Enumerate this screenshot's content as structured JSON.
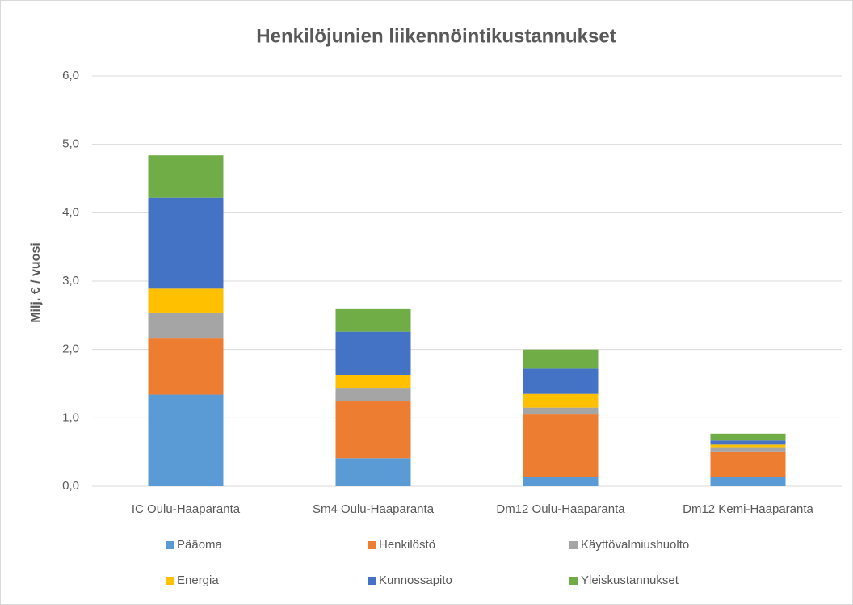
{
  "chart_data": {
    "type": "stacked_bar",
    "title": "Henkilöjunien liikennöintikustannukset",
    "ylabel": "Milj. € / vuosi",
    "categories": [
      "IC Oulu-Haaparanta",
      "Sm4 Oulu-Haaparanta",
      "Dm12 Oulu-Haaparanta",
      "Dm12 Kemi-Haaparanta"
    ],
    "series": [
      {
        "name": "Pääoma",
        "color": "#5b9bd5",
        "values": [
          1.34,
          0.41,
          0.13,
          0.13
        ]
      },
      {
        "name": "Henkilöstö",
        "color": "#ed7d31",
        "values": [
          0.82,
          0.83,
          0.92,
          0.38
        ]
      },
      {
        "name": "Käyttövalmiushuolto",
        "color": "#a5a5a5",
        "values": [
          0.38,
          0.2,
          0.1,
          0.05
        ]
      },
      {
        "name": "Energia",
        "color": "#ffc000",
        "values": [
          0.35,
          0.19,
          0.2,
          0.05
        ]
      },
      {
        "name": "Kunnossapito",
        "color": "#4472c4",
        "values": [
          1.33,
          0.63,
          0.37,
          0.06
        ]
      },
      {
        "name": "Yleiskustannukset",
        "color": "#70ad47",
        "values": [
          0.62,
          0.34,
          0.28,
          0.1
        ]
      }
    ],
    "ylim": [
      0,
      6
    ],
    "yticks": [
      {
        "value": 0,
        "label": "0,0"
      },
      {
        "value": 1,
        "label": "1,0"
      },
      {
        "value": 2,
        "label": "2,0"
      },
      {
        "value": 3,
        "label": "3,0"
      },
      {
        "value": 4,
        "label": "4,0"
      },
      {
        "value": 5,
        "label": "5,0"
      },
      {
        "value": 6,
        "label": "6,0"
      }
    ],
    "grid": true,
    "legend": "bottom"
  }
}
